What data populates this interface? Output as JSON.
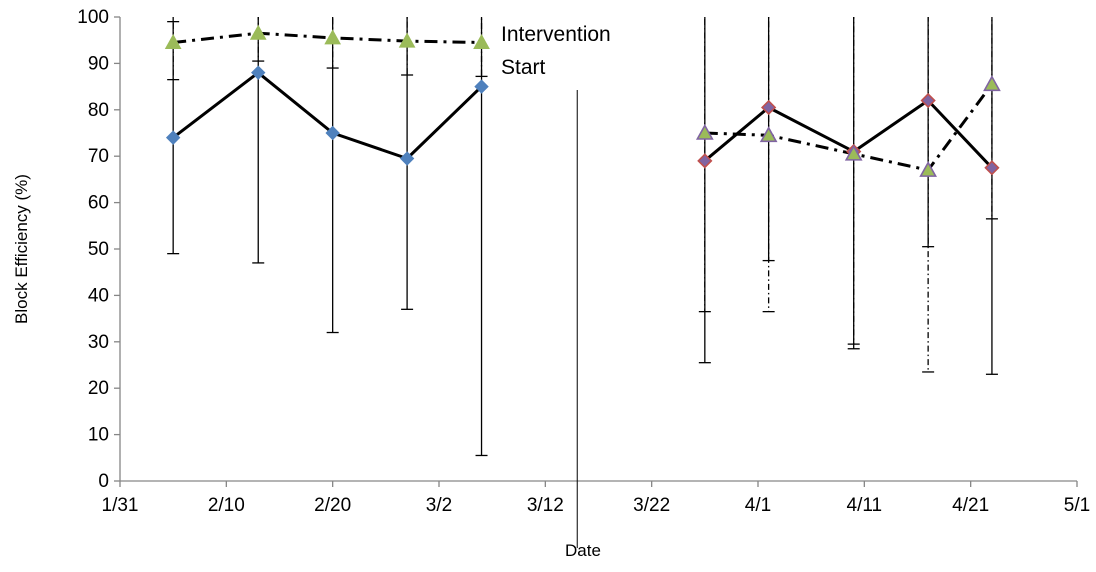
{
  "chart_data": {
    "type": "line",
    "title": "",
    "xlabel": "Date",
    "ylabel": "Block Efficiency (%)",
    "year_hint": "dates shown as month/day",
    "xlim": [
      "1/31",
      "5/1"
    ],
    "ylim": [
      0,
      100
    ],
    "x_ticks": [
      "1/31",
      "2/10",
      "2/20",
      "3/2",
      "3/12",
      "3/22",
      "4/1",
      "4/11",
      "4/21",
      "5/1"
    ],
    "y_ticks": [
      "0",
      "10",
      "20",
      "30",
      "40",
      "50",
      "60",
      "70",
      "80",
      "90",
      "100"
    ],
    "grid": false,
    "legend": "none",
    "annotation": {
      "lines": [
        "Intervention",
        "Start"
      ],
      "x": "3/15"
    },
    "series": [
      {
        "line_style": "solid",
        "marker": "diamond",
        "marker_color": "#4F81BD",
        "points": [
          {
            "x": "2/5",
            "y": 74,
            "err_low": 49,
            "err_high": 100
          },
          {
            "x": "2/13",
            "y": 88,
            "err_low": 47,
            "err_high": 100
          },
          {
            "x": "2/20",
            "y": 75,
            "err_low": 32,
            "err_high": 100
          },
          {
            "x": "2/27",
            "y": 69.5,
            "err_low": 37,
            "err_high": 100
          },
          {
            "x": "3/6",
            "y": 85,
            "err_low": 5.5,
            "err_high": 100
          }
        ]
      },
      {
        "line_style": "dash-dot",
        "marker": "triangle",
        "marker_color": "#9BBB59",
        "points": [
          {
            "x": "2/5",
            "y": 94.5,
            "err_low": 86.5,
            "err_high": 99
          },
          {
            "x": "2/13",
            "y": 96.5,
            "err_low": 90.5,
            "err_high": 100
          },
          {
            "x": "2/20",
            "y": 95.5,
            "err_low": 89,
            "err_high": 100
          },
          {
            "x": "2/27",
            "y": 94.8,
            "err_low": 87.5,
            "err_high": 100
          },
          {
            "x": "3/6",
            "y": 94.5,
            "err_low": 87.2,
            "err_high": 100
          }
        ]
      },
      {
        "line_style": "solid",
        "marker": "diamond",
        "marker_color": "#8064A2",
        "marker_edge": "#C0504D",
        "points": [
          {
            "x": "3/27",
            "y": 69,
            "err_low": 25.5,
            "err_high": 100
          },
          {
            "x": "4/2",
            "y": 80.5,
            "err_low": 47.5,
            "err_high": 100
          },
          {
            "x": "4/10",
            "y": 71,
            "err_low": 28.5,
            "err_high": 100
          },
          {
            "x": "4/17",
            "y": 82,
            "err_low": 50.5,
            "err_high": 100
          },
          {
            "x": "4/23",
            "y": 67.5,
            "err_low": 23,
            "err_high": 100
          }
        ]
      },
      {
        "line_style": "dash-dot",
        "marker": "triangle",
        "marker_color": "#9BBB59",
        "marker_edge": "#8064A2",
        "points": [
          {
            "x": "3/27",
            "y": 75,
            "err_low": 36.5,
            "err_high": 100
          },
          {
            "x": "4/2",
            "y": 74.5,
            "err_low": 36.5,
            "err_high": 100
          },
          {
            "x": "4/10",
            "y": 70.5,
            "err_low": 29.5,
            "err_high": 100
          },
          {
            "x": "4/17",
            "y": 67,
            "err_low": 23.5,
            "err_high": 100
          },
          {
            "x": "4/23",
            "y": 85.5,
            "err_low": 56.5,
            "err_high": 100
          }
        ]
      }
    ],
    "colors": {
      "axis": "#868686",
      "line": "#000000",
      "error_bar": "#000000"
    }
  }
}
